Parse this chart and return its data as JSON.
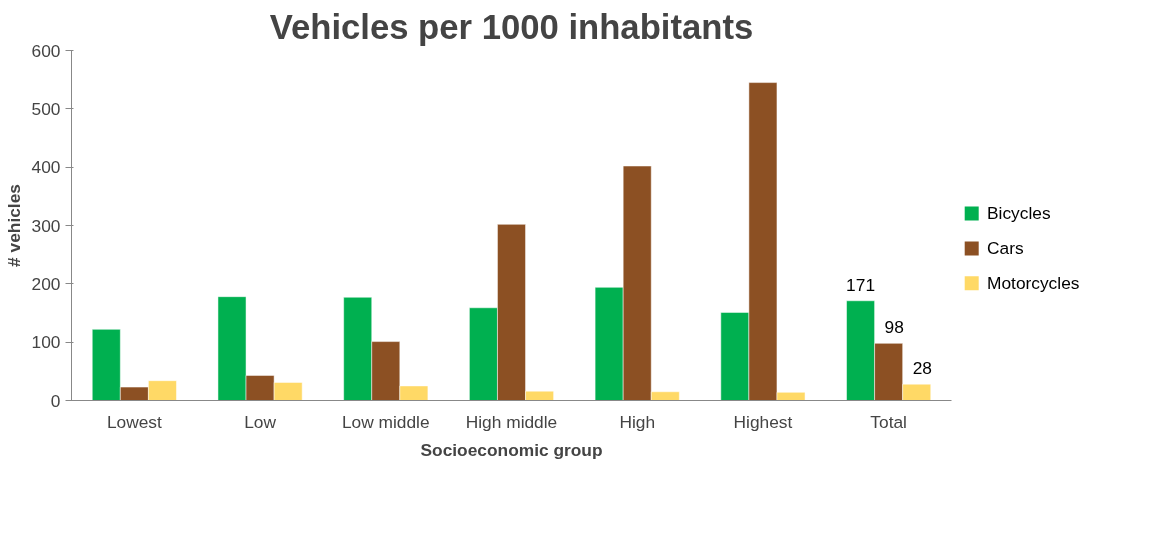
{
  "chart_data": {
    "type": "bar",
    "title": "Vehicles per 1000 inhabitants",
    "xlabel": "Socioeconomic group",
    "ylabel": "# vehicles",
    "categories": [
      "Lowest",
      "Low",
      "Low middle",
      "High middle",
      "High",
      "Highest",
      "Total"
    ],
    "series": [
      {
        "name": "Bicycles",
        "color": "#00b050",
        "values": [
          122,
          178,
          177,
          159,
          194,
          151,
          171
        ],
        "value_labels": [
          null,
          null,
          null,
          null,
          null,
          null,
          "171"
        ]
      },
      {
        "name": "Cars",
        "color": "#8c5023",
        "values": [
          23,
          43,
          101,
          302,
          402,
          545,
          98
        ],
        "value_labels": [
          null,
          null,
          null,
          null,
          null,
          null,
          "98"
        ]
      },
      {
        "name": "Motorcycles",
        "color": "#ffd966",
        "values": [
          34,
          31,
          25,
          16,
          15,
          14,
          28
        ],
        "value_labels": [
          null,
          null,
          null,
          null,
          null,
          null,
          "28"
        ]
      }
    ],
    "ylim": [
      0,
      600
    ],
    "yticks": [
      0,
      100,
      200,
      300,
      400,
      500,
      600
    ],
    "grid": false,
    "legend": "right"
  }
}
